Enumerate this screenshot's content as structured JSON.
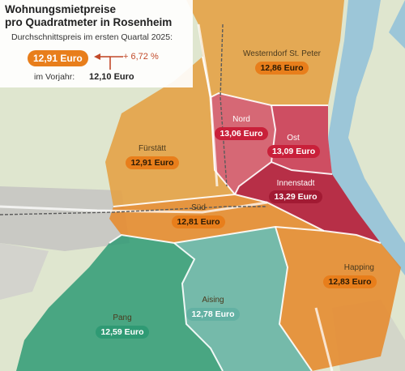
{
  "legend": {
    "title_line1": "Wohnungsmietpreise",
    "title_line2": "pro Quadratmeter in Rosenheim",
    "subtitle": "Durchschnittspreis im ersten Quartal 2025:",
    "average_price": "12,91 Euro",
    "change": "+ 6,72 %",
    "previous_year_label": "im Vorjahr:",
    "previous_year_value": "12,10 Euro"
  },
  "districts": [
    {
      "name": "Westerndorf St. Peter",
      "price": "12,86 Euro",
      "color": "#e87e1b"
    },
    {
      "name": "Nord",
      "price": "13,06 Euro",
      "color": "#c9203a"
    },
    {
      "name": "Ost",
      "price": "13,09 Euro",
      "color": "#c9203a"
    },
    {
      "name": "Fürstätt",
      "price": "12,91 Euro",
      "color": "#e87e1b"
    },
    {
      "name": "Innenstadt",
      "price": "13,29 Euro",
      "color": "#a21a33"
    },
    {
      "name": "Süd",
      "price": "12,81 Euro",
      "color": "#e87e1b"
    },
    {
      "name": "Happing",
      "price": "12,83 Euro",
      "color": "#e87e1b"
    },
    {
      "name": "Aising",
      "price": "12,78 Euro",
      "color": "#63b1a3"
    },
    {
      "name": "Pang",
      "price": "12,59 Euro",
      "color": "#2f9a74"
    }
  ],
  "colors": {
    "orange": "#e87e1b",
    "red": "#c9203a",
    "dark_red": "#a21a33",
    "green": "#2f9a74",
    "teal": "#63b1a3",
    "river": "#9cc6d8"
  }
}
